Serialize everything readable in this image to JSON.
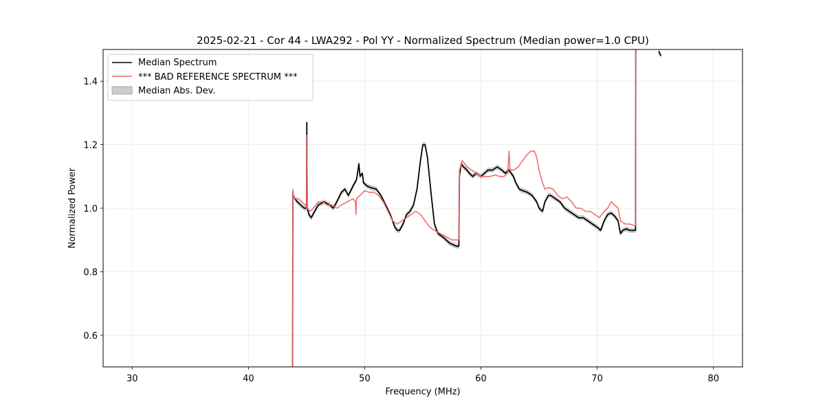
{
  "chart_data": {
    "type": "line",
    "title": "2025-02-21 - Cor 44 - LWA292 - Pol YY - Normalized Spectrum (Median power=1.0 CPU)",
    "xlabel": "Frequency (MHz)",
    "ylabel": "Normalized Power",
    "xlim": [
      27.5,
      82.5
    ],
    "ylim": [
      0.5,
      1.5
    ],
    "xticks": [
      30,
      40,
      50,
      60,
      70,
      80
    ],
    "yticks": [
      0.6,
      0.8,
      1.0,
      1.2,
      1.4
    ],
    "xtick_labels": [
      "30",
      "40",
      "50",
      "60",
      "70",
      "80"
    ],
    "ytick_labels": [
      "0.6",
      "0.8",
      "1.0",
      "1.2",
      "1.4"
    ],
    "grid": true,
    "legend_position": "upper-left",
    "legend": [
      {
        "label": "Median Spectrum",
        "kind": "line",
        "color": "#000000"
      },
      {
        "label": "*** BAD REFERENCE SPECTRUM ***",
        "kind": "line",
        "color": "#ee6666"
      },
      {
        "label": "Median Abs. Dev.",
        "kind": "patch",
        "color": "#bbbbbb"
      }
    ],
    "series": [
      {
        "name": "Median Spectrum",
        "color": "#000000",
        "x": [
          43.8,
          43.82,
          43.85,
          44.0,
          44.2,
          44.5,
          44.8,
          45.0,
          45.02,
          45.06,
          45.2,
          45.4,
          45.7,
          46.0,
          46.5,
          47.0,
          47.3,
          47.6,
          48.0,
          48.3,
          48.6,
          49.0,
          49.3,
          49.5,
          49.6,
          49.8,
          49.9,
          50.2,
          50.5,
          51.0,
          51.4,
          51.8,
          52.2,
          52.6,
          52.8,
          53.0,
          53.3,
          53.6,
          53.9,
          54.2,
          54.5,
          54.8,
          55.0,
          55.2,
          55.4,
          55.7,
          56.0,
          56.3,
          56.7,
          57.0,
          57.3,
          57.6,
          57.9,
          58.1,
          58.15,
          58.3,
          58.5,
          58.8,
          59.0,
          59.3,
          59.6,
          60.0,
          60.3,
          60.6,
          61.0,
          61.4,
          61.8,
          62.1,
          62.4,
          62.8,
          63.0,
          63.3,
          63.6,
          64.0,
          64.4,
          64.8,
          65.0,
          65.3,
          65.5,
          65.8,
          66.0,
          66.4,
          66.8,
          67.2,
          67.6,
          68.0,
          68.4,
          68.8,
          69.2,
          69.6,
          70.0,
          70.3,
          70.6,
          70.9,
          71.2,
          71.5,
          71.8,
          72.0,
          72.2,
          72.5,
          72.8,
          73.0,
          73.3,
          73.32,
          73.4
        ],
        "y": [
          0.5,
          1.05,
          1.04,
          1.03,
          1.02,
          1.01,
          1.0,
          1.0,
          1.27,
          1.0,
          0.98,
          0.97,
          0.99,
          1.01,
          1.02,
          1.01,
          1.0,
          1.02,
          1.05,
          1.06,
          1.04,
          1.07,
          1.09,
          1.14,
          1.1,
          1.11,
          1.08,
          1.07,
          1.065,
          1.06,
          1.04,
          1.01,
          0.98,
          0.94,
          0.93,
          0.93,
          0.95,
          0.98,
          0.99,
          1.01,
          1.06,
          1.15,
          1.2,
          1.2,
          1.16,
          1.05,
          0.95,
          0.92,
          0.91,
          0.9,
          0.89,
          0.885,
          0.88,
          0.88,
          1.1,
          1.14,
          1.13,
          1.12,
          1.11,
          1.1,
          1.11,
          1.1,
          1.11,
          1.12,
          1.12,
          1.13,
          1.12,
          1.11,
          1.12,
          1.1,
          1.08,
          1.06,
          1.055,
          1.05,
          1.04,
          1.02,
          1.0,
          0.99,
          1.02,
          1.04,
          1.04,
          1.03,
          1.02,
          1.0,
          0.99,
          0.98,
          0.97,
          0.97,
          0.96,
          0.95,
          0.94,
          0.93,
          0.96,
          0.98,
          0.985,
          0.975,
          0.96,
          0.92,
          0.93,
          0.935,
          0.93,
          0.93,
          0.93,
          1.5,
          1.5
        ]
      },
      {
        "name": "Median Spectrum (75 MHz segment)",
        "color": "#000000",
        "x": [
          75.3,
          75.4,
          75.5
        ],
        "y": [
          1.495,
          1.485,
          1.48
        ]
      },
      {
        "name": "*** BAD REFERENCE SPECTRUM ***",
        "color": "#ee6666",
        "x": [
          43.8,
          43.82,
          43.85,
          44.0,
          44.3,
          44.6,
          44.9,
          45.0,
          45.03,
          45.07,
          45.3,
          45.6,
          46.0,
          46.4,
          46.8,
          47.2,
          47.6,
          48.0,
          48.5,
          49.0,
          49.2,
          49.25,
          49.3,
          49.6,
          50.0,
          50.4,
          50.8,
          51.2,
          51.6,
          52.0,
          52.4,
          52.8,
          53.2,
          53.6,
          54.0,
          54.4,
          54.8,
          55.2,
          55.6,
          56.0,
          56.5,
          57.0,
          57.5,
          58.0,
          58.1,
          58.15,
          58.4,
          58.8,
          59.2,
          59.6,
          60.0,
          60.4,
          60.8,
          61.2,
          61.6,
          62.0,
          62.3,
          62.42,
          62.5,
          62.8,
          63.2,
          63.6,
          64.0,
          64.3,
          64.6,
          64.8,
          65.0,
          65.3,
          65.5,
          65.8,
          66.2,
          66.6,
          67.0,
          67.4,
          67.8,
          68.2,
          68.6,
          69.0,
          69.4,
          69.8,
          70.2,
          70.6,
          70.9,
          71.2,
          71.5,
          71.8,
          72.0,
          72.4,
          72.8,
          73.2,
          73.3,
          73.32,
          73.4
        ],
        "y": [
          0.5,
          1.06,
          1.04,
          1.03,
          1.03,
          1.02,
          1.01,
          1.0,
          1.23,
          1.0,
          0.99,
          1.0,
          1.02,
          1.02,
          1.01,
          1.01,
          1.0,
          1.01,
          1.02,
          1.03,
          1.02,
          0.98,
          1.03,
          1.04,
          1.055,
          1.05,
          1.05,
          1.04,
          1.02,
          0.99,
          0.96,
          0.95,
          0.96,
          0.97,
          0.98,
          0.99,
          0.98,
          0.96,
          0.94,
          0.93,
          0.92,
          0.91,
          0.9,
          0.9,
          0.9,
          1.12,
          1.15,
          1.13,
          1.12,
          1.11,
          1.1,
          1.1,
          1.1,
          1.105,
          1.1,
          1.1,
          1.11,
          1.18,
          1.12,
          1.12,
          1.13,
          1.15,
          1.17,
          1.18,
          1.18,
          1.16,
          1.12,
          1.08,
          1.06,
          1.065,
          1.06,
          1.04,
          1.03,
          1.035,
          1.02,
          1.0,
          1.0,
          0.99,
          0.99,
          0.98,
          0.97,
          0.99,
          1.0,
          1.02,
          1.01,
          1.0,
          0.96,
          0.95,
          0.95,
          0.945,
          0.945,
          1.5,
          1.5
        ]
      }
    ],
    "mad_band_halfwidth": 0.008
  }
}
